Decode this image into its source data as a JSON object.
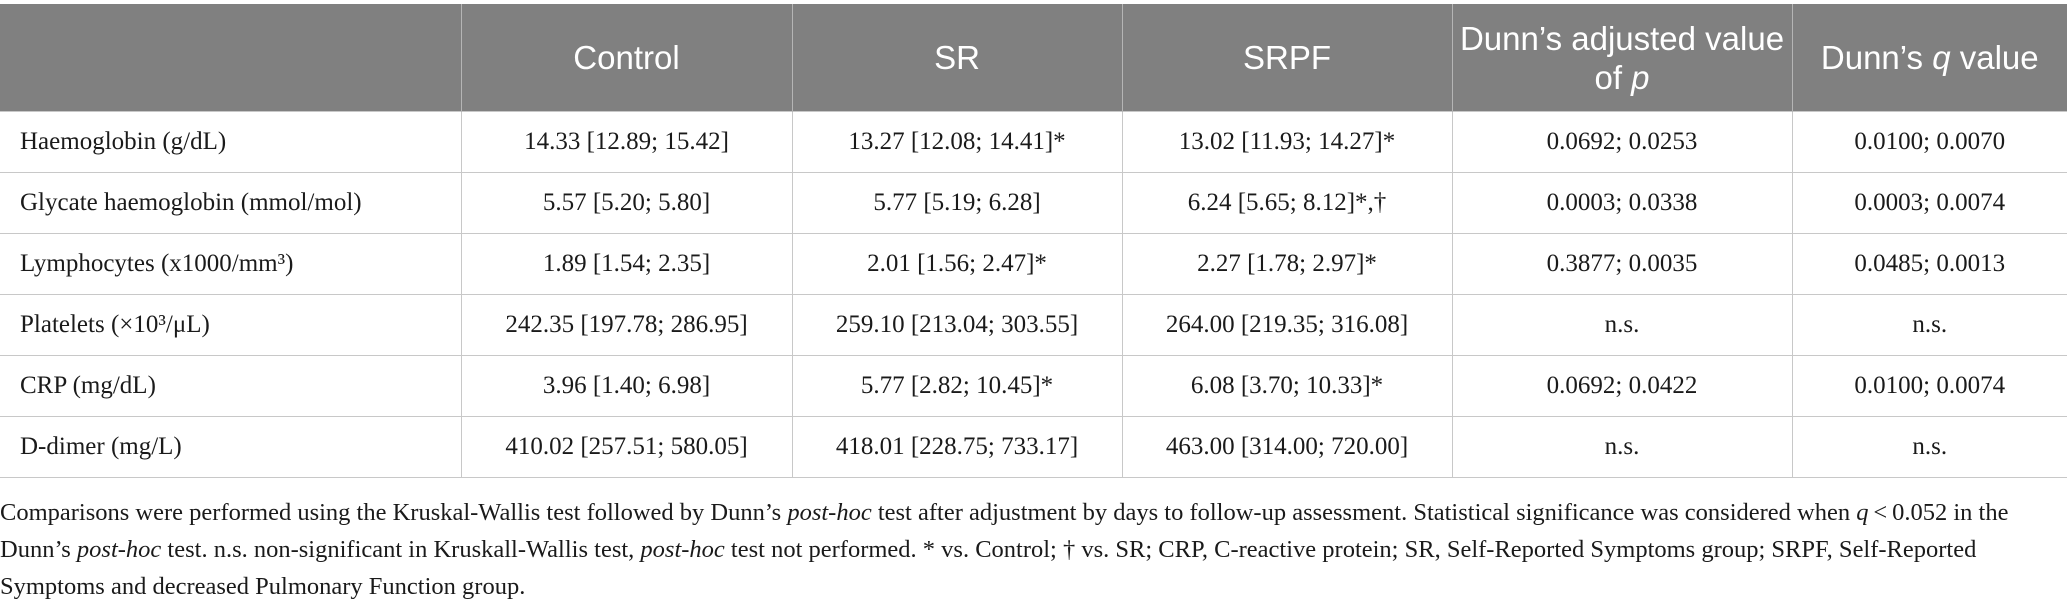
{
  "table": {
    "headers": [
      {
        "text": ""
      },
      {
        "text": "Control"
      },
      {
        "text": "SR"
      },
      {
        "text": "SRPF"
      },
      {
        "pre": "Dunn’s adjusted value of ",
        "em": "p"
      },
      {
        "pre": "Dunn’s ",
        "em": "q",
        "post": " value"
      }
    ],
    "rows": [
      {
        "label": "Haemoglobin (g/dL)",
        "control": "14.33 [12.89; 15.42]",
        "sr": "13.27 [12.08; 14.41]*",
        "srpf": "13.02 [11.93; 14.27]*",
        "p": "0.0692; 0.0253",
        "q": "0.0100; 0.0070"
      },
      {
        "label": "Glycate haemoglobin (mmol/mol)",
        "control": "5.57 [5.20; 5.80]",
        "sr": "5.77 [5.19; 6.28]",
        "srpf": "6.24 [5.65; 8.12]*,†",
        "p": "0.0003; 0.0338",
        "q": "0.0003; 0.0074"
      },
      {
        "label": "Lymphocytes (x1000/mm³)",
        "control": "1.89 [1.54; 2.35]",
        "sr": "2.01 [1.56; 2.47]*",
        "srpf": "2.27 [1.78; 2.97]*",
        "p": "0.3877; 0.0035",
        "q": "0.0485; 0.0013"
      },
      {
        "label": "Platelets (×10³/μL)",
        "control": "242.35 [197.78; 286.95]",
        "sr": "259.10 [213.04; 303.55]",
        "srpf": "264.00 [219.35; 316.08]",
        "p": "n.s.",
        "q": "n.s."
      },
      {
        "label": "CRP (mg/dL)",
        "control": "3.96 [1.40; 6.98]",
        "sr": "5.77 [2.82; 10.45]*",
        "srpf": "6.08 [3.70; 10.33]*",
        "p": "0.0692; 0.0422",
        "q": "0.0100; 0.0074"
      },
      {
        "label": "D-dimer (mg/L)",
        "control": "410.02 [257.51; 580.05]",
        "sr": "418.01 [228.75; 733.17]",
        "srpf": "463.00 [314.00; 720.00]",
        "p": "n.s.",
        "q": "n.s."
      }
    ]
  },
  "footnote": [
    {
      "t": "Comparisons were performed using the Kruskal-Wallis test followed by Dunn’s "
    },
    {
      "t": "post-hoc",
      "i": true
    },
    {
      "t": " test after adjustment by days to follow-up assessment. Statistical significance was considered when "
    },
    {
      "t": "q",
      "i": true
    },
    {
      "t": " < 0.052 in the Dunn’s "
    },
    {
      "t": "post-hoc",
      "i": true
    },
    {
      "t": " test. n.s. non-significant in Kruskall-Wallis test, "
    },
    {
      "t": "post-hoc",
      "i": true
    },
    {
      "t": " test not performed. * vs. Control; † vs. SR; CRP, C-reactive protein; SR, Self-Reported Symptoms group; SRPF, Self-Reported Symptoms and decreased Pulmonary Function group."
    }
  ],
  "colors": {
    "header_bg": "#808080",
    "header_text": "#ffffff",
    "grid": "#c8c8c8"
  }
}
